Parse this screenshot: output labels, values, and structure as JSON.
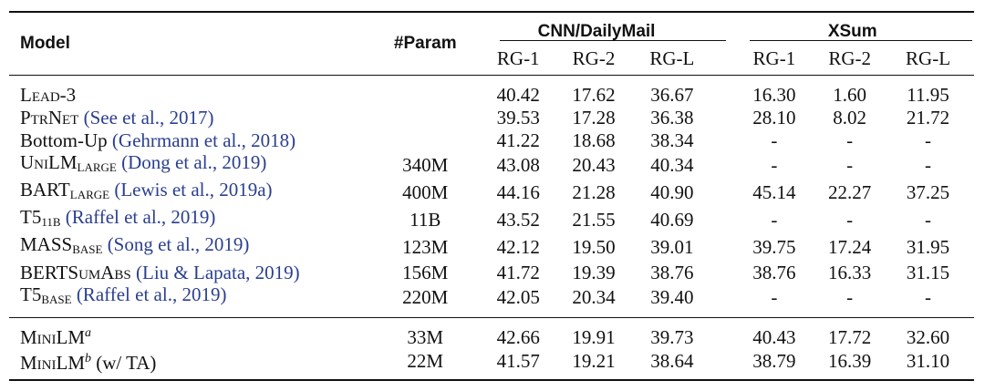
{
  "header": {
    "model": "Model",
    "param": "#Param",
    "group1": "CNN/DailyMail",
    "group2": "XSum",
    "metrics": [
      "RG-1",
      "RG-2",
      "RG-L",
      "RG-1",
      "RG-2",
      "RG-L"
    ]
  },
  "rows": [
    {
      "name": "Lead-3",
      "sub": "",
      "sup": "",
      "cite": "",
      "suffix": "",
      "param": "",
      "scores": [
        "40.42",
        "17.62",
        "36.67",
        "16.30",
        "1.60",
        "11.95"
      ]
    },
    {
      "name": "PtrNet",
      "sub": "",
      "sup": "",
      "cite": "(See et al., 2017)",
      "suffix": "",
      "param": "",
      "scores": [
        "39.53",
        "17.28",
        "36.38",
        "28.10",
        "8.02",
        "21.72"
      ]
    },
    {
      "name": "Bottom-Up",
      "sub": "",
      "sup": "",
      "cite": "(Gehrmann et al., 2018)",
      "suffix": "",
      "param": "",
      "scores": [
        "41.22",
        "18.68",
        "38.34",
        "-",
        "-",
        "-"
      ]
    },
    {
      "name": "UniLM",
      "sub": "LARGE",
      "sup": "",
      "cite": "(Dong et al., 2019)",
      "suffix": "",
      "param": "340M",
      "scores": [
        "43.08",
        "20.43",
        "40.34",
        "-",
        "-",
        "-"
      ]
    },
    {
      "name": "BART",
      "sub": "LARGE",
      "sup": "",
      "cite": "(Lewis et al., 2019a)",
      "suffix": "",
      "param": "400M",
      "scores": [
        "44.16",
        "21.28",
        "40.90",
        "45.14",
        "22.27",
        "37.25"
      ]
    },
    {
      "name": "T5",
      "sub": "11B",
      "sup": "",
      "cite": "(Raffel et al., 2019)",
      "suffix": "",
      "param": "11B",
      "scores": [
        "43.52",
        "21.55",
        "40.69",
        "-",
        "-",
        "-"
      ]
    },
    {
      "name": "MASS",
      "sub": "BASE",
      "sup": "",
      "cite": "(Song et al., 2019)",
      "suffix": "",
      "param": "123M",
      "scores": [
        "42.12",
        "19.50",
        "39.01",
        "39.75",
        "17.24",
        "31.95"
      ]
    },
    {
      "name": "BERTSumAbs",
      "sub": "",
      "sup": "",
      "cite": "(Liu & Lapata, 2019)",
      "suffix": "",
      "param": "156M",
      "scores": [
        "41.72",
        "19.39",
        "38.76",
        "38.76",
        "16.33",
        "31.15"
      ]
    },
    {
      "name": "T5",
      "sub": "BASE",
      "sup": "",
      "cite": "(Raffel et al., 2019)",
      "suffix": "",
      "param": "220M",
      "scores": [
        "42.05",
        "20.34",
        "39.40",
        "-",
        "-",
        "-"
      ]
    },
    {
      "name": "MiniLM",
      "sub": "",
      "sup": "a",
      "cite": "",
      "suffix": "",
      "param": "33M",
      "scores": [
        "42.66",
        "19.91",
        "39.73",
        "40.43",
        "17.72",
        "32.60"
      ]
    },
    {
      "name": "MiniLM",
      "sub": "",
      "sup": "b",
      "cite": "",
      "suffix": "(w/ TA)",
      "param": "22M",
      "scores": [
        "41.57",
        "19.21",
        "38.64",
        "38.79",
        "16.39",
        "31.10"
      ]
    }
  ]
}
